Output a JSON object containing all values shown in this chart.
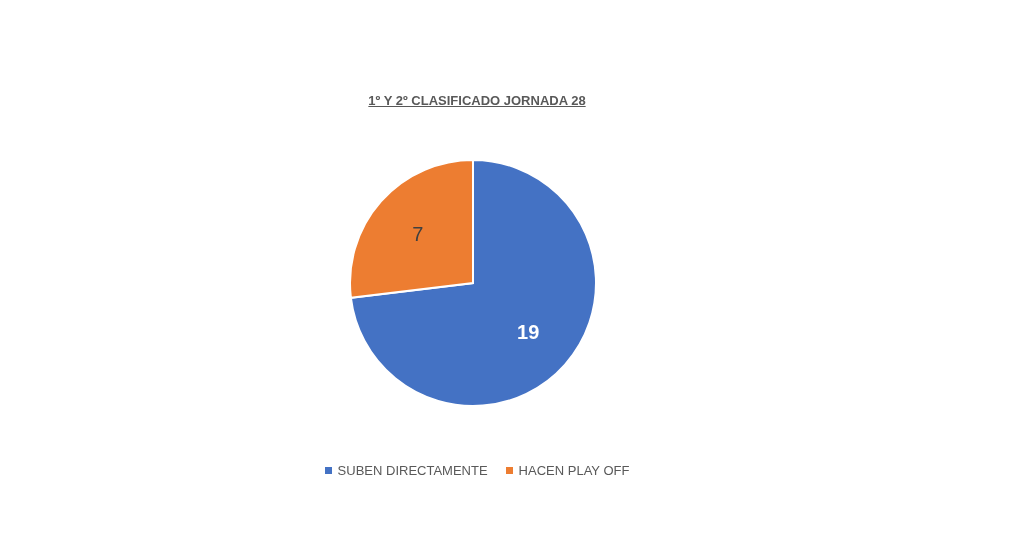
{
  "chart_data": {
    "type": "pie",
    "title": "1º Y 2º CLASIFICADO JORNADA 28",
    "categories": [
      "SUBEN DIRECTAMENTE",
      "HACEN PLAY OFF"
    ],
    "values": [
      19,
      7
    ],
    "colors": [
      "#4472c4",
      "#ed7d31"
    ],
    "data_labels": true,
    "legend": "bottom"
  }
}
